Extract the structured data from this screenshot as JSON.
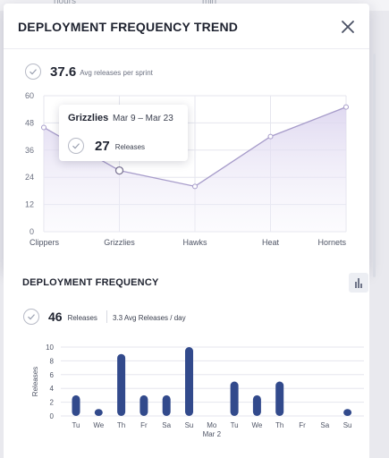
{
  "background": {
    "top_text_1": "hours",
    "top_text_2": "min"
  },
  "modal": {
    "title": "DEPLOYMENT FREQUENCY TREND",
    "close_icon": "close-icon",
    "kpi": {
      "value": "37.6",
      "label": "Avg releases per sprint"
    },
    "tooltip": {
      "team": "Grizzlies",
      "range": "Mar 9 – Mar 23",
      "value": "27",
      "label": "Releases"
    }
  },
  "card2": {
    "title": "DEPLOYMENT FREQUENCY",
    "toggle_icon": "bar-chart-icon",
    "kpi": {
      "value": "46",
      "label": "Releases",
      "avg": "3.3 Avg Releases / day"
    }
  },
  "colors": {
    "line": "#a79cca",
    "area_top": "#dcd5ef",
    "bar": "#324a8c",
    "grid": "#e5e6ee"
  },
  "chart_data": [
    {
      "type": "area",
      "categories": [
        "Clippers",
        "Grizzlies",
        "Hawks",
        "Heat",
        "Hornets"
      ],
      "values": [
        46,
        27,
        20,
        42,
        55
      ],
      "ylim": [
        0,
        60
      ],
      "yticks": [
        "0",
        "12",
        "24",
        "36",
        "48",
        "60"
      ],
      "grid": true,
      "highlight_index": 1
    },
    {
      "type": "bar",
      "categories": [
        "Tu",
        "We",
        "Th",
        "Fr",
        "Sa",
        "Su",
        "Mo",
        "Tu",
        "We",
        "Th",
        "Fr",
        "Sa",
        "Su"
      ],
      "sub_label": {
        "index": 6,
        "text": "Mar 2"
      },
      "values": [
        3,
        1,
        9,
        3,
        3,
        10,
        0,
        5,
        3,
        5,
        0,
        0,
        1
      ],
      "ylabel": "Releases",
      "ylim": [
        0,
        10
      ],
      "yticks": [
        "0",
        "2",
        "4",
        "6",
        "8",
        "10"
      ],
      "grid": true
    }
  ]
}
